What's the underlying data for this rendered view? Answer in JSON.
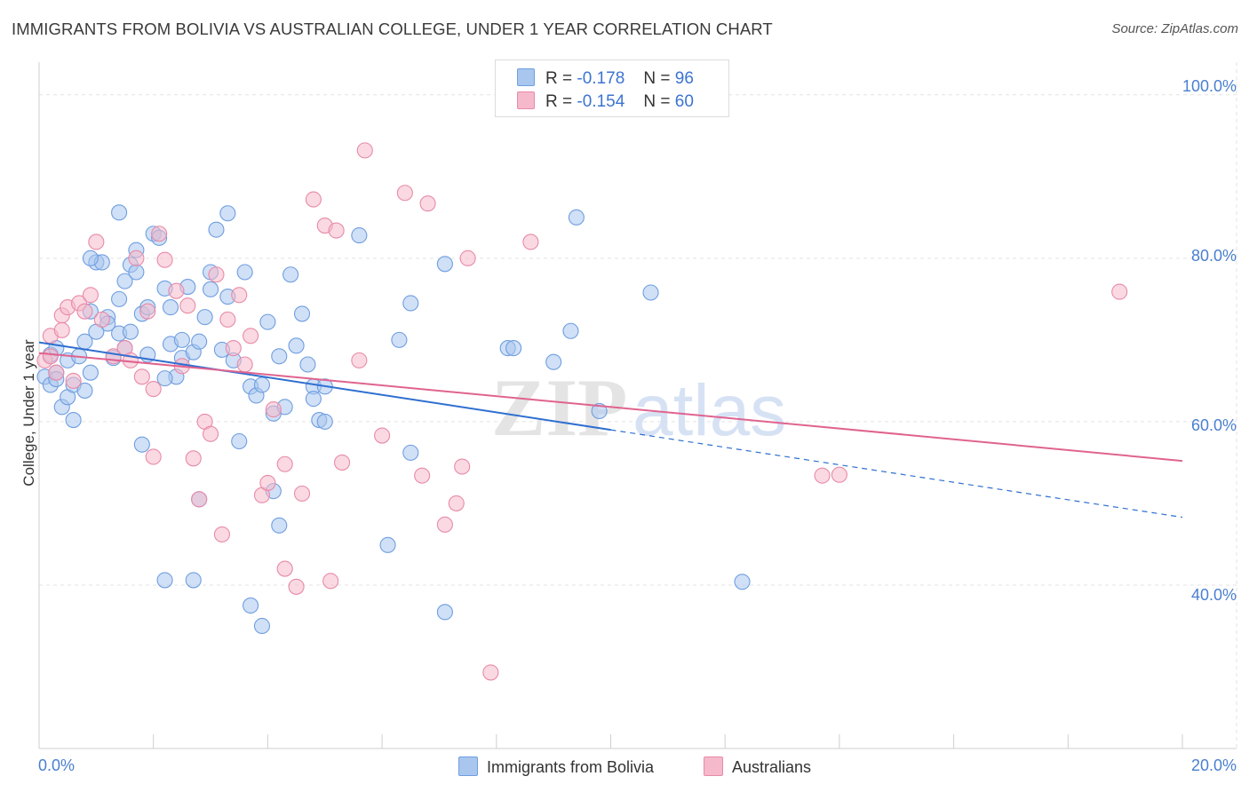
{
  "header": {
    "title": "IMMIGRANTS FROM BOLIVIA VS AUSTRALIAN COLLEGE, UNDER 1 YEAR CORRELATION CHART",
    "source": "Source: ZipAtlas.com"
  },
  "legend": {
    "blue": {
      "r_label": "R =",
      "r_value": "-0.178",
      "n_label": "N =",
      "n_value": "96"
    },
    "pink": {
      "r_label": "R =",
      "r_value": "-0.154",
      "n_label": "N =",
      "n_value": "60"
    }
  },
  "bottom_legend": {
    "blue_label": "Immigrants from Bolivia",
    "pink_label": "Australians"
  },
  "watermark": {
    "zip": "ZIP",
    "atlas": "atlas"
  },
  "colors": {
    "blue_fill": "#a9c6ee",
    "blue_stroke": "#6f9ee0",
    "blue_line": "#2f6fd0",
    "pink_fill": "#f5b9cb",
    "pink_stroke": "#e88aa8",
    "pink_line": "#e0638f",
    "tick_text": "#4a7fd0",
    "grid": "#e3e3e3"
  },
  "chart_data": {
    "type": "scatter",
    "title": "IMMIGRANTS FROM BOLIVIA VS AUSTRALIAN COLLEGE, UNDER 1 YEAR CORRELATION CHART",
    "xlabel": "",
    "ylabel": "College, Under 1 year",
    "xlim": [
      0,
      20
    ],
    "ylim": [
      20,
      104
    ],
    "x_tick_labels": [
      "0.0%",
      "20.0%"
    ],
    "y_tick_labels": [
      "40.0%",
      "60.0%",
      "80.0%",
      "100.0%"
    ],
    "y_ticks": [
      40,
      60,
      80,
      100
    ],
    "grid": true,
    "legend_position": "top-center",
    "series": [
      {
        "name": "Immigrants from Bolivia",
        "color": "#a9c6ee",
        "r": -0.178,
        "n": 96,
        "trend": {
          "x0": 0.0,
          "y0": 69.7,
          "x1": 10.0,
          "y1": 59.0,
          "dashed_to_x": 20.0,
          "dashed_to_y": 48.3
        },
        "points": [
          [
            0.1,
            65.5
          ],
          [
            0.2,
            64.5
          ],
          [
            0.2,
            68.2
          ],
          [
            0.3,
            69.0
          ],
          [
            0.3,
            66.0
          ],
          [
            0.4,
            61.8
          ],
          [
            0.5,
            63.0
          ],
          [
            0.5,
            67.5
          ],
          [
            0.6,
            60.2
          ],
          [
            0.6,
            64.5
          ],
          [
            0.7,
            68.0
          ],
          [
            0.8,
            63.8
          ],
          [
            0.8,
            69.8
          ],
          [
            0.9,
            66.0
          ],
          [
            0.9,
            73.5
          ],
          [
            1.0,
            79.5
          ],
          [
            1.1,
            79.5
          ],
          [
            1.2,
            72.8
          ],
          [
            1.3,
            67.8
          ],
          [
            1.4,
            70.8
          ],
          [
            1.4,
            75.0
          ],
          [
            1.5,
            69.0
          ],
          [
            1.5,
            77.2
          ],
          [
            1.6,
            71.0
          ],
          [
            1.6,
            79.2
          ],
          [
            1.7,
            81.0
          ],
          [
            1.7,
            78.3
          ],
          [
            1.8,
            73.2
          ],
          [
            1.9,
            68.2
          ],
          [
            1.9,
            74.0
          ],
          [
            1.8,
            57.2
          ],
          [
            2.0,
            83.0
          ],
          [
            2.1,
            82.5
          ],
          [
            2.2,
            76.3
          ],
          [
            2.3,
            69.5
          ],
          [
            2.3,
            74.0
          ],
          [
            2.4,
            65.5
          ],
          [
            2.5,
            67.8
          ],
          [
            2.5,
            70.0
          ],
          [
            2.6,
            76.5
          ],
          [
            2.7,
            68.5
          ],
          [
            2.8,
            69.8
          ],
          [
            2.9,
            72.8
          ],
          [
            2.8,
            50.5
          ],
          [
            3.0,
            76.2
          ],
          [
            3.0,
            78.3
          ],
          [
            3.1,
            83.5
          ],
          [
            3.2,
            68.8
          ],
          [
            3.3,
            75.3
          ],
          [
            3.3,
            85.5
          ],
          [
            3.4,
            67.5
          ],
          [
            3.5,
            57.6
          ],
          [
            3.6,
            78.3
          ],
          [
            3.7,
            64.3
          ],
          [
            3.8,
            63.2
          ],
          [
            3.9,
            64.5
          ],
          [
            4.0,
            72.2
          ],
          [
            4.1,
            61.0
          ],
          [
            4.2,
            68.0
          ],
          [
            4.3,
            61.8
          ],
          [
            4.4,
            78.0
          ],
          [
            4.5,
            69.3
          ],
          [
            4.6,
            73.2
          ],
          [
            4.7,
            67.0
          ],
          [
            4.8,
            64.3
          ],
          [
            4.8,
            62.8
          ],
          [
            4.9,
            60.2
          ],
          [
            5.0,
            64.3
          ],
          [
            3.7,
            37.5
          ],
          [
            3.9,
            35.0
          ],
          [
            2.2,
            40.6
          ],
          [
            2.7,
            40.6
          ],
          [
            4.1,
            51.5
          ],
          [
            4.2,
            47.3
          ],
          [
            5.0,
            60.0
          ],
          [
            5.6,
            82.8
          ],
          [
            6.1,
            44.9
          ],
          [
            6.3,
            70.0
          ],
          [
            6.5,
            74.5
          ],
          [
            6.5,
            56.2
          ],
          [
            7.1,
            79.3
          ],
          [
            7.1,
            36.7
          ],
          [
            8.2,
            69.0
          ],
          [
            8.3,
            69.0
          ],
          [
            9.0,
            67.3
          ],
          [
            9.3,
            71.1
          ],
          [
            9.4,
            85.0
          ],
          [
            9.8,
            61.3
          ],
          [
            10.7,
            75.8
          ],
          [
            12.3,
            40.4
          ],
          [
            0.9,
            80.0
          ],
          [
            1.2,
            72.0
          ],
          [
            1.4,
            85.6
          ],
          [
            2.2,
            65.3
          ],
          [
            0.3,
            65.2
          ],
          [
            1.0,
            71.0
          ]
        ]
      },
      {
        "name": "Australians",
        "color": "#f5b9cb",
        "r": -0.154,
        "n": 60,
        "trend": {
          "x0": 0.0,
          "y0": 68.4,
          "x1": 20.0,
          "y1": 55.2
        },
        "points": [
          [
            0.1,
            67.5
          ],
          [
            0.2,
            68.0
          ],
          [
            0.2,
            70.5
          ],
          [
            0.3,
            66.0
          ],
          [
            0.4,
            73.0
          ],
          [
            0.4,
            71.2
          ],
          [
            0.5,
            74.0
          ],
          [
            0.6,
            65.0
          ],
          [
            0.7,
            74.5
          ],
          [
            0.8,
            73.5
          ],
          [
            0.9,
            75.5
          ],
          [
            1.0,
            82.0
          ],
          [
            1.1,
            72.5
          ],
          [
            1.3,
            68.0
          ],
          [
            1.5,
            69.0
          ],
          [
            1.6,
            67.5
          ],
          [
            1.7,
            80.0
          ],
          [
            1.8,
            65.5
          ],
          [
            1.9,
            73.5
          ],
          [
            2.0,
            64.0
          ],
          [
            2.0,
            55.7
          ],
          [
            2.1,
            83.0
          ],
          [
            2.2,
            79.8
          ],
          [
            2.4,
            76.0
          ],
          [
            2.5,
            66.8
          ],
          [
            2.6,
            74.2
          ],
          [
            2.7,
            55.5
          ],
          [
            2.8,
            50.5
          ],
          [
            2.9,
            60.0
          ],
          [
            3.0,
            58.5
          ],
          [
            3.1,
            78.0
          ],
          [
            3.2,
            46.2
          ],
          [
            3.3,
            72.5
          ],
          [
            3.4,
            69.0
          ],
          [
            3.5,
            75.5
          ],
          [
            3.6,
            67.0
          ],
          [
            3.7,
            70.5
          ],
          [
            3.9,
            51.0
          ],
          [
            4.0,
            52.5
          ],
          [
            4.1,
            61.5
          ],
          [
            4.3,
            54.8
          ],
          [
            4.3,
            42.0
          ],
          [
            4.5,
            39.8
          ],
          [
            4.6,
            51.2
          ],
          [
            4.8,
            87.2
          ],
          [
            5.0,
            84.0
          ],
          [
            5.2,
            83.4
          ],
          [
            5.3,
            55.0
          ],
          [
            5.6,
            67.5
          ],
          [
            5.7,
            93.2
          ],
          [
            6.0,
            58.3
          ],
          [
            6.4,
            88.0
          ],
          [
            6.8,
            86.7
          ],
          [
            6.7,
            53.4
          ],
          [
            7.3,
            50.0
          ],
          [
            7.4,
            54.5
          ],
          [
            7.5,
            80.0
          ],
          [
            7.1,
            47.4
          ],
          [
            8.6,
            82.0
          ],
          [
            7.9,
            29.3
          ]
        ],
        "extra_points": [
          [
            13.7,
            53.4
          ],
          [
            14.0,
            53.5
          ],
          [
            18.9,
            75.9
          ],
          [
            5.1,
            40.5
          ]
        ]
      }
    ]
  }
}
